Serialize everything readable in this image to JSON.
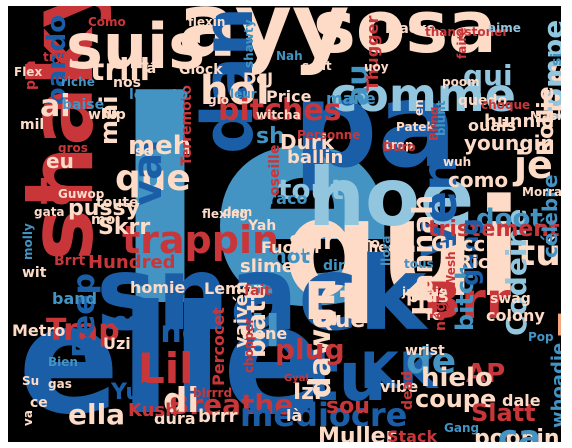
{
  "palette": {
    "background": "#000000",
    "dark_red": "#8b0d1c",
    "red": "#c9363a",
    "salmon": "#f4a582",
    "peach": "#fddbc7",
    "light_blue": "#92c5de",
    "blue": "#4393c3",
    "dark_blue": "#1a5ea8"
  },
  "words": [
    {
      "text": "le",
      "color": "#4393c3"
    },
    {
      "text": "qui",
      "color": "#fddbc7"
    },
    {
      "text": "elle",
      "color": "#1a5ea8"
    },
    {
      "text": "ayy",
      "color": "#fddbc7"
    },
    {
      "text": "pa",
      "color": "#1a5ea8"
    },
    {
      "text": "Skrrt",
      "color": "#f4a582"
    },
    {
      "text": "sosa",
      "color": "#fddbc7"
    },
    {
      "text": "shaky",
      "color": "#c9363a"
    },
    {
      "text": "snack",
      "color": "#1a5ea8"
    },
    {
      "text": "suis",
      "color": "#fddbc7"
    },
    {
      "text": "hoe",
      "color": "#92c5de"
    },
    {
      "text": "tu",
      "color": "#1a5ea8"
    },
    {
      "text": "dan",
      "color": "#1a5ea8"
    },
    {
      "text": "comme",
      "color": "#92c5de"
    },
    {
      "text": "trappin",
      "color": "#c9363a"
    },
    {
      "text": "Et",
      "color": "#fddbc7"
    },
    {
      "text": "KK",
      "color": "#1a5ea8"
    },
    {
      "text": "Lil",
      "color": "#c9363a"
    },
    {
      "text": "hol",
      "color": "#fddbc7"
    },
    {
      "text": "que",
      "color": "#fddbc7"
    },
    {
      "text": "Brr",
      "color": "#c9363a"
    },
    {
      "text": "Trap",
      "color": "#c9363a"
    },
    {
      "text": "Ven",
      "color": "#1a5ea8"
    },
    {
      "text": "Es",
      "color": "#fddbc7"
    },
    {
      "text": "tout",
      "color": "#92c5de"
    },
    {
      "text": "bitches",
      "color": "#c9363a"
    },
    {
      "text": "dawg",
      "color": "#fddbc7"
    },
    {
      "text": "il",
      "color": "#4393c3"
    },
    {
      "text": "vai",
      "color": "#1a5ea8"
    },
    {
      "text": "je",
      "color": "#fddbc7"
    },
    {
      "text": "au",
      "color": "#4393c3"
    },
    {
      "text": "tú",
      "color": "#fddbc7"
    },
    {
      "text": "trill",
      "color": "#fddbc7"
    },
    {
      "text": "Breathe",
      "color": "#c9363a"
    },
    {
      "text": "mediocre",
      "color": "#1a5ea8"
    },
    {
      "text": "di",
      "color": "#fddbc7"
    },
    {
      "text": "Beep",
      "color": "#1a5ea8"
    },
    {
      "text": "Hannah",
      "color": "#fddbc7"
    },
    {
      "text": "Codeine",
      "color": "#92c5de"
    },
    {
      "text": "plug",
      "color": "#c9363a"
    },
    {
      "text": "doot",
      "color": "#4393c3"
    },
    {
      "text": "Yuh",
      "color": "#1a5ea8"
    },
    {
      "text": "ella",
      "color": "#fddbc7"
    },
    {
      "text": "une",
      "color": "#1a5ea8"
    },
    {
      "text": "AP",
      "color": "#c9363a"
    },
    {
      "text": "de",
      "color": "#4393c3"
    },
    {
      "text": "bando",
      "color": "#1a5ea8"
    },
    {
      "text": "lo",
      "color": "#c9363a"
    },
    {
      "text": "ai",
      "color": "#fddbc7"
    },
    {
      "text": "eu",
      "color": "#fddbc7"
    },
    {
      "text": "pussy",
      "color": "#fddbc7"
    },
    {
      "text": "Skrr",
      "color": "#fddbc7"
    },
    {
      "text": "sur",
      "color": "#fddbc7"
    },
    {
      "text": "tristement",
      "color": "#c9363a"
    },
    {
      "text": "bitch",
      "color": "#4393c3"
    },
    {
      "text": "blatt",
      "color": "#fddbc7"
    },
    {
      "text": "gang",
      "color": "#1a5ea8"
    },
    {
      "text": "rompe",
      "color": "#92c5de"
    },
    {
      "text": "Rollie",
      "color": "#fddbc7"
    },
    {
      "text": "qui",
      "color": "#92c5de"
    },
    {
      "text": "Muller",
      "color": "#fddbc7"
    },
    {
      "text": "coupe",
      "color": "#fddbc7"
    },
    {
      "text": "hielo",
      "color": "#fddbc7"
    },
    {
      "text": "whoadie",
      "color": "#4393c3"
    },
    {
      "text": "Slatt",
      "color": "#c9363a"
    },
    {
      "text": "poppin",
      "color": "#fddbc7"
    },
    {
      "text": "sou",
      "color": "#c9363a"
    },
    {
      "text": "Izi",
      "color": "#fddbc7"
    },
    {
      "text": "mai",
      "color": "#fddbc7"
    },
    {
      "text": "meh",
      "color": "#fddbc7"
    },
    {
      "text": "mane",
      "color": "#4393c3"
    },
    {
      "text": "hunnid",
      "color": "#fddbc7"
    },
    {
      "text": "como",
      "color": "#fddbc7"
    },
    {
      "text": "est",
      "color": "#1a5ea8"
    },
    {
      "text": "sh",
      "color": "#4393c3"
    },
    {
      "text": "thot",
      "color": "#4393c3"
    },
    {
      "text": "Gucci",
      "color": "#fddbc7"
    },
    {
      "text": "youngin",
      "color": "#fddbc7"
    },
    {
      "text": "célèbre",
      "color": "#4393c3"
    },
    {
      "text": "ça",
      "color": "#4393c3"
    },
    {
      "text": "Rich",
      "color": "#fddbc7"
    },
    {
      "text": "sheesh",
      "color": "#fddbc7"
    },
    {
      "text": "Uzi",
      "color": "#fddbc7"
    },
    {
      "text": "Metro",
      "color": "#fddbc7"
    },
    {
      "text": "vaivén",
      "color": "#fddbc7"
    },
    {
      "text": "dura",
      "color": "#fddbc7"
    },
    {
      "text": "slime",
      "color": "#fddbc7"
    },
    {
      "text": "Hundred",
      "color": "#c9363a"
    },
    {
      "text": "Lemon",
      "color": "#fddbc7"
    },
    {
      "text": "Percocet",
      "color": "#c9363a"
    },
    {
      "text": "tiene",
      "color": "#fddbc7"
    },
    {
      "text": "Qué",
      "color": "#fddbc7"
    },
    {
      "text": "band",
      "color": "#4393c3"
    },
    {
      "text": "homie",
      "color": "#fddbc7"
    },
    {
      "text": "fait",
      "color": "#c9363a"
    },
    {
      "text": "plus",
      "color": "#fddbc7"
    },
    {
      "text": "fe",
      "color": "#fddbc7"
    },
    {
      "text": "Kush",
      "color": "#c9363a"
    },
    {
      "text": "là",
      "color": "#fddbc7"
    },
    {
      "text": "vibe",
      "color": "#fddbc7"
    },
    {
      "text": "brrr",
      "color": "#fddbc7"
    },
    {
      "text": "dale",
      "color": "#fddbc7"
    },
    {
      "text": "Stack",
      "color": "#c9363a"
    },
    {
      "text": "même",
      "color": "#fddbc7"
    },
    {
      "text": "dead",
      "color": "#c9363a"
    },
    {
      "text": "wrist",
      "color": "#fddbc7"
    },
    {
      "text": "négro",
      "color": "#c9363a"
    },
    {
      "text": "colony",
      "color": "#fddbc7"
    },
    {
      "text": "swag",
      "color": "#fddbc7"
    },
    {
      "text": "Pop",
      "color": "#4393c3"
    },
    {
      "text": "chopper",
      "color": "#c9363a"
    },
    {
      "text": "blrrrd",
      "color": "#c9363a"
    },
    {
      "text": "Durk",
      "color": "#fddbc7"
    },
    {
      "text": "ballin",
      "color": "#fddbc7"
    },
    {
      "text": "oseille",
      "color": "#c9363a"
    },
    {
      "text": "Draco",
      "color": "#4393c3"
    },
    {
      "text": "Yah",
      "color": "#fddbc7"
    },
    {
      "text": "Fuckin",
      "color": "#fddbc7"
    },
    {
      "text": "dir",
      "color": "#4393c3"
    },
    {
      "text": "pero",
      "color": "#fddbc7"
    },
    {
      "text": "flexing",
      "color": "#fddbc7"
    },
    {
      "text": "dem",
      "color": "#fddbc7"
    },
    {
      "text": "moi",
      "color": "#fddbc7"
    },
    {
      "text": "toute",
      "color": "#fddbc7"
    },
    {
      "text": "Terremoto",
      "color": "#c9363a"
    },
    {
      "text": "se",
      "color": "#fddbc7"
    },
    {
      "text": "witcha",
      "color": "#fddbc7"
    },
    {
      "text": "Price",
      "color": "#fddbc7"
    },
    {
      "text": "DeJ",
      "color": "#fddbc7"
    },
    {
      "text": "leur",
      "color": "#4393c3"
    },
    {
      "text": "glo",
      "color": "#fddbc7"
    },
    {
      "text": "Glock",
      "color": "#fddbc7"
    },
    {
      "text": "Tá",
      "color": "#fddbc7"
    },
    {
      "text": "nos",
      "color": "#fddbc7"
    },
    {
      "text": "levantó",
      "color": "#4393c3"
    },
    {
      "text": "whip",
      "color": "#fddbc7"
    },
    {
      "text": "baise",
      "color": "#4393c3"
    },
    {
      "text": "mil",
      "color": "#fddbc7"
    },
    {
      "text": "pon",
      "color": "#c9363a"
    },
    {
      "text": "gros",
      "color": "#c9363a"
    },
    {
      "text": "Flex",
      "color": "#fddbc7"
    },
    {
      "text": "tryna",
      "color": "#c9363a"
    },
    {
      "text": "Cómo",
      "color": "#c9363a"
    },
    {
      "text": "riche",
      "color": "#4393c3"
    },
    {
      "text": "flexin",
      "color": "#fddbc7"
    },
    {
      "text": "Nah",
      "color": "#4393c3"
    },
    {
      "text": "shawty",
      "color": "#4393c3"
    },
    {
      "text": "sont",
      "color": "#fddbc7"
    },
    {
      "text": "Flacko",
      "color": "#fddbc7"
    },
    {
      "text": "Thugger",
      "color": "#c9363a"
    },
    {
      "text": "uoy",
      "color": "#fddbc7"
    },
    {
      "text": "thangstoner",
      "color": "#c9363a"
    },
    {
      "text": "aime",
      "color": "#92c5de"
    },
    {
      "text": "faire",
      "color": "#c9363a"
    },
    {
      "text": "si",
      "color": "#4393c3"
    },
    {
      "text": "poom",
      "color": "#fddbc7"
    },
    {
      "text": "quedo",
      "color": "#fddbc7"
    },
    {
      "text": "choque",
      "color": "#c9363a"
    },
    {
      "text": "ouais",
      "color": "#fddbc7"
    },
    {
      "text": "Mask",
      "color": "#fddbc7"
    },
    {
      "text": "trop",
      "color": "#fddbc7"
    },
    {
      "text": "Patek",
      "color": "#fddbc7"
    },
    {
      "text": "Duro",
      "color": "#c9363a"
    },
    {
      "text": "en",
      "color": "#fddbc7"
    },
    {
      "text": "Bling",
      "color": "#c9363a"
    },
    {
      "text": "blunt",
      "color": "#4393c3"
    },
    {
      "text": "wuh",
      "color": "#fddbc7"
    },
    {
      "text": "Personne",
      "color": "#c9363a"
    },
    {
      "text": "Morray",
      "color": "#fddbc7"
    },
    {
      "text": "Wesh",
      "color": "#c9363a"
    },
    {
      "text": "llora",
      "color": "#4393c3"
    },
    {
      "text": "tous",
      "color": "#4393c3"
    },
    {
      "text": "jamais",
      "color": "#fddbc7"
    },
    {
      "text": "gata",
      "color": "#fddbc7"
    },
    {
      "text": "molly",
      "color": "#4393c3"
    },
    {
      "text": "Guwop",
      "color": "#fddbc7"
    },
    {
      "text": "wit",
      "color": "#fddbc7"
    },
    {
      "text": "Brrt",
      "color": "#c9363a"
    },
    {
      "text": "Su",
      "color": "#fddbc7"
    },
    {
      "text": "Bien",
      "color": "#4393c3"
    },
    {
      "text": "gas",
      "color": "#fddbc7"
    },
    {
      "text": "ce",
      "color": "#fddbc7"
    },
    {
      "text": "va",
      "color": "#fddbc7"
    },
    {
      "text": "Gyal",
      "color": "#c9363a"
    },
    {
      "text": "Gang",
      "color": "#4393c3"
    }
  ]
}
